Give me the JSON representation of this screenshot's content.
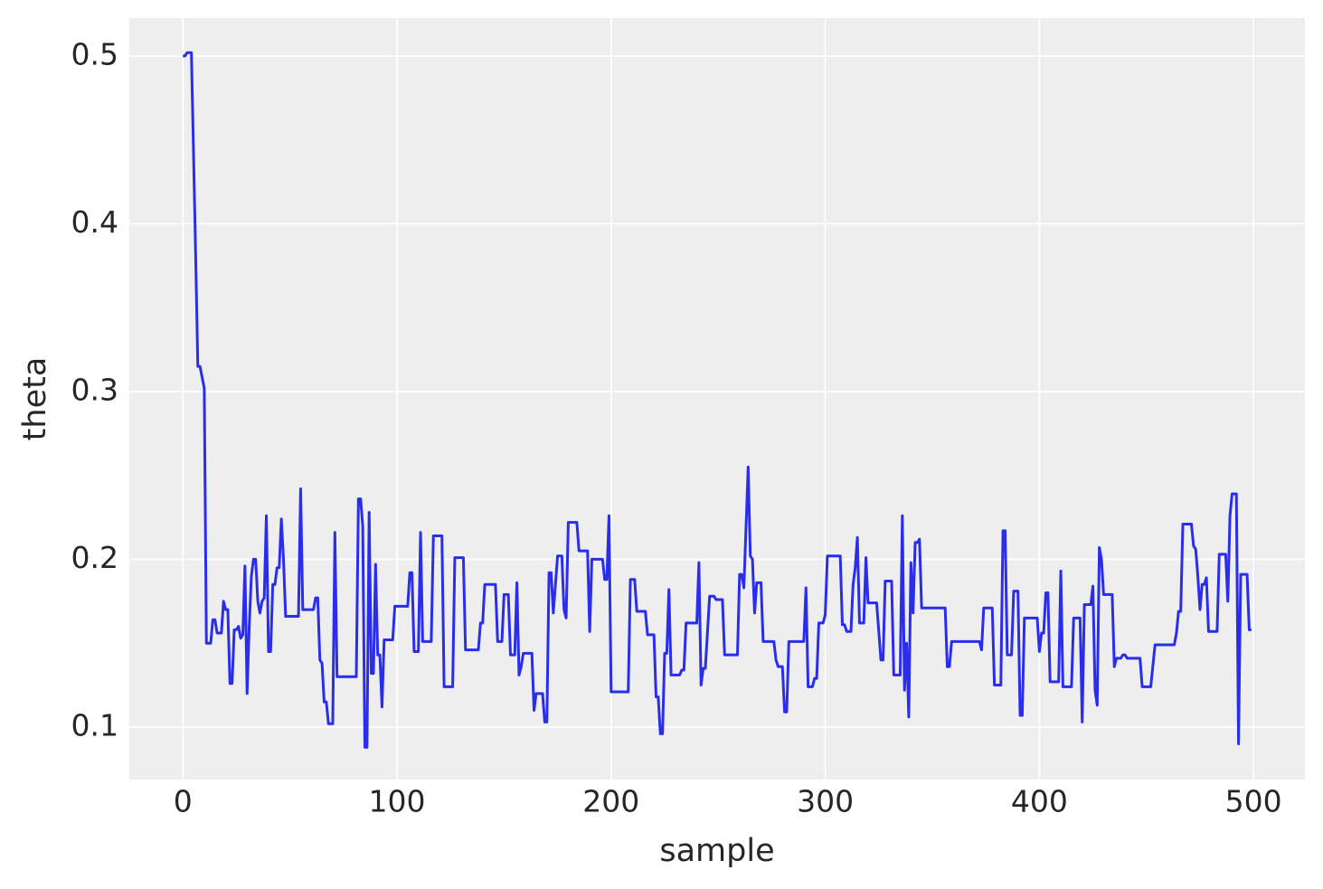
{
  "chart_data": {
    "type": "line",
    "xlabel": "sample",
    "ylabel": "theta",
    "color": "#2a2eec",
    "grid": true,
    "xlim": [
      -25,
      524
    ],
    "ylim": [
      0.0687,
      0.5226
    ],
    "xticks": [
      0,
      100,
      200,
      300,
      400,
      500
    ],
    "yticks": [
      0.1,
      0.2,
      0.3,
      0.4,
      0.5
    ],
    "x": [
      0,
      1,
      2,
      4,
      6,
      7,
      8,
      10,
      11,
      13,
      14,
      15,
      16,
      18,
      19,
      20,
      21,
      22,
      23,
      24,
      25,
      26,
      27,
      28,
      29,
      30,
      31,
      32,
      33,
      34,
      35,
      36,
      37,
      38,
      39,
      40,
      41,
      42,
      43,
      44,
      45,
      46,
      47,
      48,
      54,
      55,
      56,
      61,
      62,
      63,
      64,
      65,
      66,
      67,
      68,
      70,
      71,
      72,
      81,
      82,
      83,
      84,
      85,
      86,
      87,
      88,
      89,
      90,
      91,
      92,
      93,
      94,
      98,
      99,
      105,
      106,
      107,
      108,
      110,
      111,
      112,
      116,
      117,
      121,
      122,
      126,
      127,
      131,
      132,
      138,
      139,
      140,
      141,
      146,
      147,
      149,
      150,
      152,
      153,
      155,
      156,
      157,
      158,
      159,
      163,
      164,
      165,
      168,
      169,
      170,
      171,
      172,
      173,
      174,
      175,
      177,
      178,
      179,
      180,
      184,
      185,
      189,
      190,
      191,
      196,
      197,
      198,
      199,
      200,
      208,
      209,
      211,
      212,
      216,
      217,
      220,
      221,
      222,
      223,
      224,
      225,
      226,
      227,
      228,
      232,
      233,
      234,
      235,
      240,
      241,
      242,
      243,
      244,
      246,
      248,
      249,
      252,
      253,
      259,
      260,
      261,
      262,
      264,
      265,
      266,
      267,
      268,
      270,
      271,
      276,
      277,
      278,
      280,
      281,
      282,
      283,
      290,
      291,
      292,
      294,
      295,
      296,
      297,
      299,
      300,
      301,
      307,
      308,
      309,
      310,
      312,
      313,
      314,
      315,
      316,
      318,
      319,
      320,
      324,
      325,
      326,
      327,
      328,
      331,
      332,
      335,
      336,
      337,
      338,
      339,
      340,
      341,
      342,
      343,
      344,
      345,
      356,
      357,
      358,
      359,
      372,
      373,
      374,
      378,
      379,
      382,
      383,
      384,
      385,
      387,
      388,
      390,
      391,
      392,
      393,
      399,
      400,
      401,
      402,
      403,
      404,
      405,
      409,
      410,
      411,
      415,
      416,
      419,
      420,
      421,
      424,
      425,
      426,
      427,
      428,
      429,
      430,
      434,
      435,
      436,
      438,
      439,
      440,
      441,
      447,
      448,
      452,
      454,
      463,
      464,
      465,
      466,
      467,
      471,
      472,
      473,
      474,
      475,
      476,
      477,
      478,
      479,
      483,
      484,
      487,
      488,
      489,
      490,
      492,
      493,
      494,
      497,
      498,
      499
    ],
    "values": [
      0.5,
      0.5,
      0.502,
      0.502,
      0.38,
      0.315,
      0.315,
      0.302,
      0.15,
      0.15,
      0.164,
      0.164,
      0.156,
      0.156,
      0.175,
      0.17,
      0.17,
      0.126,
      0.126,
      0.158,
      0.158,
      0.16,
      0.153,
      0.155,
      0.196,
      0.12,
      0.16,
      0.19,
      0.2,
      0.2,
      0.175,
      0.168,
      0.175,
      0.177,
      0.226,
      0.145,
      0.145,
      0.185,
      0.185,
      0.195,
      0.195,
      0.224,
      0.2,
      0.166,
      0.166,
      0.242,
      0.17,
      0.17,
      0.177,
      0.177,
      0.14,
      0.138,
      0.115,
      0.115,
      0.102,
      0.102,
      0.216,
      0.13,
      0.13,
      0.236,
      0.236,
      0.22,
      0.088,
      0.088,
      0.228,
      0.132,
      0.132,
      0.197,
      0.143,
      0.143,
      0.112,
      0.152,
      0.152,
      0.172,
      0.172,
      0.192,
      0.192,
      0.145,
      0.145,
      0.216,
      0.151,
      0.151,
      0.214,
      0.214,
      0.124,
      0.124,
      0.201,
      0.201,
      0.146,
      0.146,
      0.162,
      0.162,
      0.185,
      0.185,
      0.151,
      0.151,
      0.179,
      0.179,
      0.143,
      0.143,
      0.186,
      0.131,
      0.136,
      0.144,
      0.144,
      0.11,
      0.12,
      0.12,
      0.103,
      0.103,
      0.192,
      0.192,
      0.168,
      0.185,
      0.202,
      0.202,
      0.17,
      0.165,
      0.222,
      0.222,
      0.205,
      0.205,
      0.157,
      0.2,
      0.2,
      0.188,
      0.188,
      0.226,
      0.121,
      0.121,
      0.188,
      0.188,
      0.169,
      0.169,
      0.155,
      0.155,
      0.118,
      0.118,
      0.096,
      0.096,
      0.144,
      0.144,
      0.182,
      0.131,
      0.131,
      0.134,
      0.134,
      0.162,
      0.162,
      0.198,
      0.125,
      0.135,
      0.135,
      0.178,
      0.178,
      0.176,
      0.176,
      0.143,
      0.143,
      0.191,
      0.191,
      0.183,
      0.255,
      0.202,
      0.2,
      0.168,
      0.186,
      0.186,
      0.151,
      0.151,
      0.14,
      0.136,
      0.136,
      0.109,
      0.109,
      0.151,
      0.151,
      0.183,
      0.124,
      0.124,
      0.129,
      0.129,
      0.162,
      0.162,
      0.167,
      0.202,
      0.202,
      0.161,
      0.161,
      0.157,
      0.157,
      0.185,
      0.195,
      0.213,
      0.162,
      0.162,
      0.201,
      0.174,
      0.174,
      0.157,
      0.14,
      0.14,
      0.187,
      0.187,
      0.131,
      0.131,
      0.226,
      0.122,
      0.15,
      0.106,
      0.198,
      0.168,
      0.21,
      0.21,
      0.212,
      0.171,
      0.171,
      0.136,
      0.136,
      0.151,
      0.151,
      0.146,
      0.171,
      0.171,
      0.125,
      0.125,
      0.217,
      0.217,
      0.143,
      0.143,
      0.181,
      0.181,
      0.107,
      0.107,
      0.165,
      0.165,
      0.145,
      0.156,
      0.156,
      0.18,
      0.18,
      0.127,
      0.127,
      0.193,
      0.124,
      0.124,
      0.165,
      0.165,
      0.103,
      0.173,
      0.173,
      0.184,
      0.122,
      0.113,
      0.207,
      0.2,
      0.179,
      0.179,
      0.136,
      0.141,
      0.141,
      0.143,
      0.143,
      0.141,
      0.141,
      0.124,
      0.124,
      0.149,
      0.149,
      0.156,
      0.169,
      0.169,
      0.221,
      0.221,
      0.208,
      0.206,
      0.19,
      0.17,
      0.185,
      0.185,
      0.189,
      0.157,
      0.157,
      0.203,
      0.203,
      0.175,
      0.226,
      0.239,
      0.239,
      0.09,
      0.191,
      0.191,
      0.158,
      0.158
    ]
  }
}
